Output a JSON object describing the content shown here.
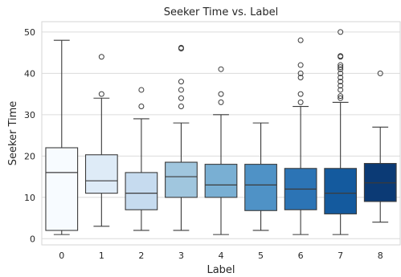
{
  "chart_data": {
    "type": "box",
    "title": "Seeker Time vs. Label",
    "xlabel": "Label",
    "ylabel": "Seeker Time",
    "categories": [
      "0",
      "1",
      "2",
      "3",
      "4",
      "5",
      "6",
      "7",
      "8"
    ],
    "yticks": [
      0,
      10,
      20,
      30,
      40,
      50
    ],
    "ylim": [
      -1.5,
      52.5
    ],
    "grid": true,
    "boxes": [
      {
        "label": "0",
        "min": 1,
        "q1": 2,
        "median": 16,
        "q3": 22,
        "max": 48,
        "outliers": [],
        "color": "#f7fbff"
      },
      {
        "label": "1",
        "min": 3,
        "q1": 11,
        "median": 14,
        "q3": 20.3,
        "max": 34,
        "outliers": [
          35,
          44
        ],
        "color": "#deebf7"
      },
      {
        "label": "2",
        "min": 2,
        "q1": 7,
        "median": 11,
        "q3": 16,
        "max": 29,
        "outliers": [
          32,
          36
        ],
        "color": "#c6dbef"
      },
      {
        "label": "3",
        "min": 2,
        "q1": 10,
        "median": 15,
        "q3": 18.5,
        "max": 28,
        "outliers": [
          32,
          34,
          36,
          38,
          46,
          46.2
        ],
        "color": "#a0c6de"
      },
      {
        "label": "4",
        "min": 1,
        "q1": 10,
        "median": 13,
        "q3": 18,
        "max": 30,
        "outliers": [
          33,
          35,
          41
        ],
        "color": "#79afd3"
      },
      {
        "label": "5",
        "min": 2,
        "q1": 6.8,
        "median": 13,
        "q3": 18,
        "max": 28,
        "outliers": [],
        "color": "#4f92c6"
      },
      {
        "label": "6",
        "min": 1,
        "q1": 7,
        "median": 12,
        "q3": 17,
        "max": 32,
        "outliers": [
          33,
          35,
          39,
          40,
          42,
          48
        ],
        "color": "#2c74b5"
      },
      {
        "label": "7",
        "min": 1,
        "q1": 6,
        "median": 11,
        "q3": 17,
        "max": 33,
        "outliers": [
          34,
          34.5,
          36,
          37,
          38,
          39,
          40,
          41,
          41.5,
          42,
          44,
          44.2,
          50
        ],
        "color": "#145a9e"
      },
      {
        "label": "8",
        "min": 4,
        "q1": 9,
        "median": 13.5,
        "q3": 18.2,
        "max": 27,
        "outliers": [
          40
        ],
        "color": "#0b3a75"
      }
    ]
  }
}
